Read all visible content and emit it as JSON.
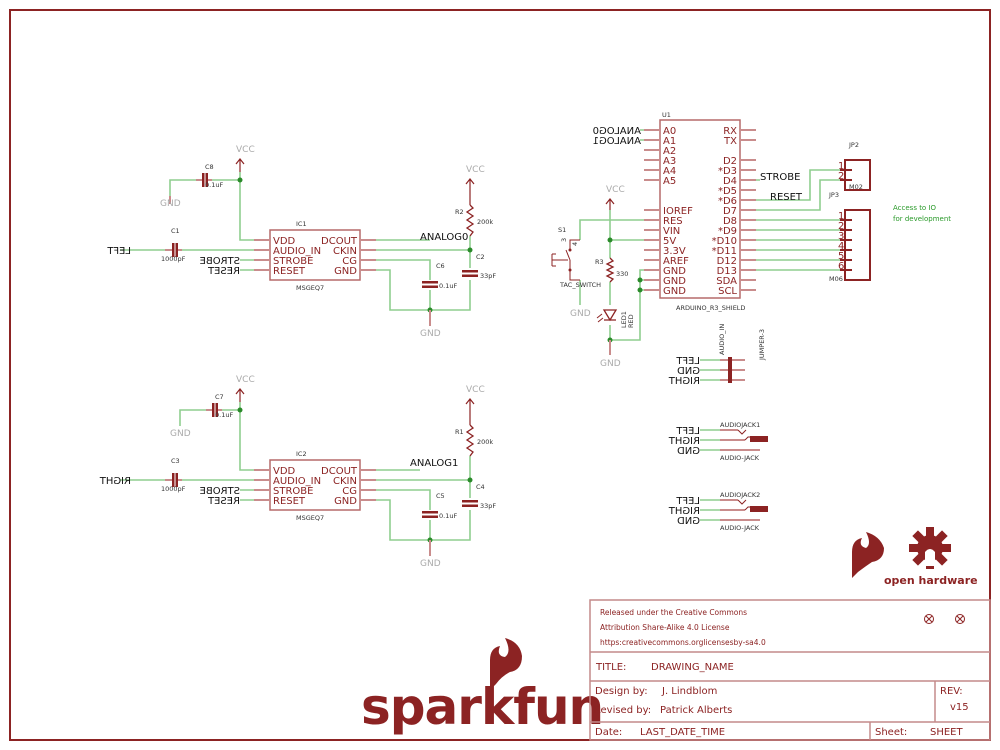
{
  "colors": {
    "line": "#8c2323",
    "wire": "#8fce8f",
    "junction": "#2a8a2a",
    "power": "#aaaaaa",
    "note": "#2a9a2a"
  },
  "ic1": {
    "ref": "IC1",
    "value": "MSGEQ7",
    "pins_left": [
      "VDD",
      "AUDIO_IN",
      "STROBE",
      "RESET"
    ],
    "pins_right": [
      "DCOUT",
      "CKIN",
      "CG",
      "GND"
    ],
    "c8": {
      "ref": "C8",
      "value": "0.1uF"
    },
    "c1": {
      "ref": "C1",
      "value": "1000pF"
    },
    "r2": {
      "ref": "R2",
      "value": "200k"
    },
    "c2": {
      "ref": "C2",
      "value": "33pF"
    },
    "c6": {
      "ref": "C6",
      "value": "0.1uF"
    },
    "nets": {
      "input": "LEFT",
      "strobe": "STROBE",
      "reset": "RESET",
      "out": "ANALOG0"
    }
  },
  "ic2": {
    "ref": "IC2",
    "value": "MSGEQ7",
    "pins_left": [
      "VDD",
      "AUDIO_IN",
      "STROBE",
      "RESET"
    ],
    "pins_right": [
      "DCOUT",
      "CKIN",
      "CG",
      "GND"
    ],
    "c7": {
      "ref": "C7",
      "value": "0.1uF"
    },
    "c3": {
      "ref": "C3",
      "value": "1000pF"
    },
    "r1": {
      "ref": "R1",
      "value": "200k"
    },
    "c4": {
      "ref": "C4",
      "value": "33pF"
    },
    "c5": {
      "ref": "C5",
      "value": "0.1uF"
    },
    "nets": {
      "input": "RIGHT",
      "strobe": "STROBE",
      "reset": "RESET",
      "out": "ANALOG1"
    }
  },
  "power": {
    "vcc": "VCC",
    "gnd": "GND"
  },
  "u1": {
    "ref": "U1",
    "value": "ARDUINO_R3_SHIELD",
    "pins_left": [
      "A0",
      "A1",
      "A2",
      "A3",
      "A4",
      "A5",
      "IOREF",
      "RES",
      "VIN",
      "5V",
      "3.3V",
      "AREF",
      "GND",
      "GND",
      "GND"
    ],
    "pins_right": [
      "RX",
      "TX",
      "D2",
      "*D3",
      "D4",
      "*D5",
      "*D6",
      "D7",
      "D8",
      "*D9",
      "*D10",
      "*D11",
      "D12",
      "D13",
      "SDA",
      "SCL"
    ],
    "nets": {
      "a0": "ANALOG0",
      "a1": "ANALOG1",
      "d4": "STROBE",
      "d6": "RESET"
    }
  },
  "s1": {
    "ref": "S1",
    "value": "TAC_SWITCH",
    "pin3": "3",
    "pin4": "4"
  },
  "r3": {
    "ref": "R3",
    "value": "330"
  },
  "led1": {
    "ref": "LED1",
    "value": "RED"
  },
  "jp2": {
    "ref": "JP2",
    "value": "M02",
    "pins": [
      "1",
      "2"
    ]
  },
  "jp3": {
    "ref": "JP3",
    "value": "M06",
    "pins": [
      "1",
      "2",
      "3",
      "4",
      "5",
      "6"
    ]
  },
  "note": {
    "line1": "Access to IO",
    "line2": "for development"
  },
  "audio_in": {
    "ref": "AUDIO_IN",
    "value": "JUMPER-3",
    "nets": [
      "LEFT",
      "GND",
      "RIGHT"
    ]
  },
  "jack1": {
    "ref": "AUDIOJACK1",
    "value": "AUDIO-JACK",
    "nets": [
      "LEFT",
      "RIGHT",
      "GND"
    ]
  },
  "jack2": {
    "ref": "AUDIOJACK2",
    "value": "AUDIO-JACK",
    "nets": [
      "LEFT",
      "RIGHT",
      "GND"
    ]
  },
  "logos": {
    "sparkfun": "sparkfun",
    "open_hardware": "open hardware"
  },
  "title_block": {
    "license1": "Released under the Creative Commons",
    "license2": "Attribution Share-Alike 4.0 License",
    "license3": "https:creativecommons.orglicensesby-sa4.0",
    "title_label": "TITLE:",
    "title": "DRAWING_NAME",
    "design_label": "Design by:",
    "designer": "J. Lindblom",
    "revised_label": "Revised by:",
    "reviser": "Patrick Alberts",
    "rev_label": "REV:",
    "rev": "v15",
    "date_label": "Date:",
    "date": "LAST_DATE_TIME",
    "sheet_label": "Sheet:",
    "sheet": "SHEET"
  }
}
